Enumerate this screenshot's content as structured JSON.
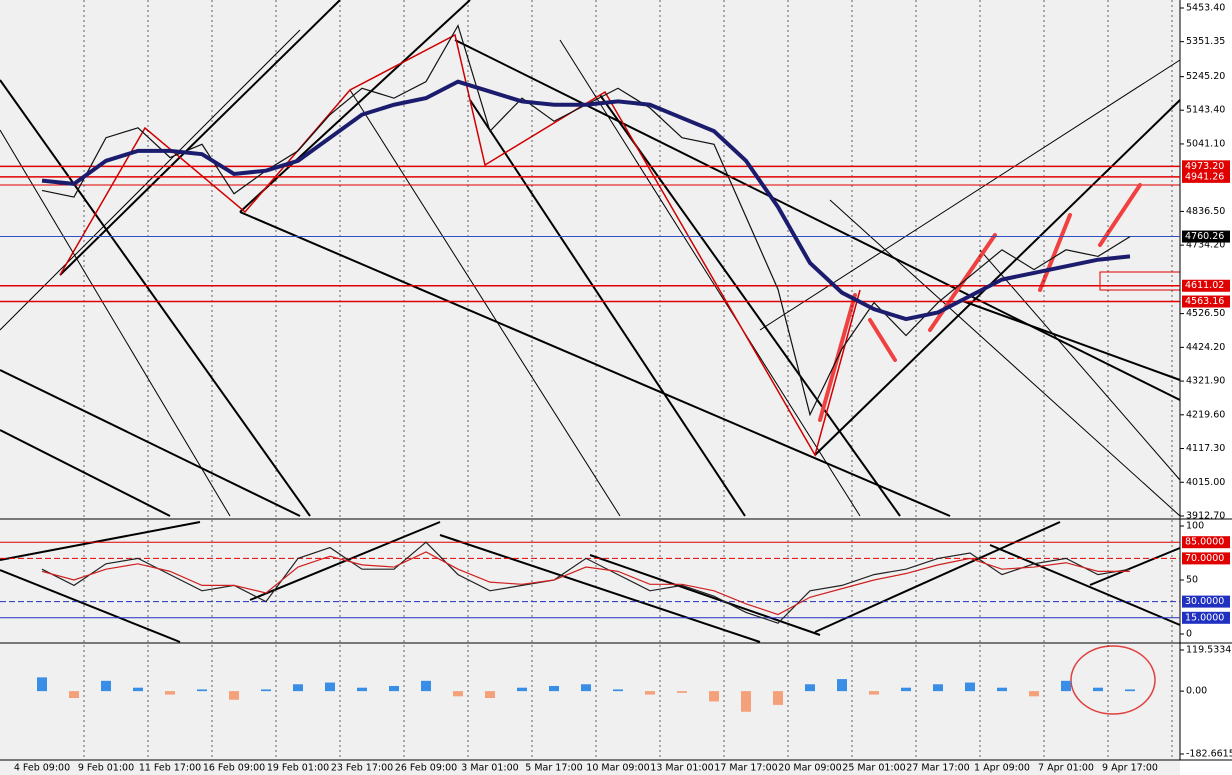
{
  "chart_data": [
    {
      "type": "line",
      "categories": [
        "4 Feb 09:00",
        null,
        "9 Feb 01:00",
        null,
        "11 Feb 17:00",
        null,
        "16 Feb 09:00",
        null,
        "19 Feb 01:00",
        null,
        "23 Feb 17:00",
        null,
        "26 Feb 09:00",
        null,
        "3 Mar 01:00",
        null,
        "5 Mar 17:00",
        null,
        "10 Mar 09:00",
        null,
        "13 Mar 01:00",
        null,
        "17 Mar 17:00",
        null,
        "20 Mar 09:00",
        null,
        "25 Mar 01:00",
        null,
        "27 Mar 17:00",
        null,
        "1 Apr 09:00",
        null,
        "7 Apr 01:00",
        null,
        "9 Apr 17:00"
      ],
      "series": [
        {
          "color": "#111111",
          "values": [
            4900,
            4880,
            5060,
            5090,
            5000,
            5040,
            4890,
            4960,
            5020,
            5130,
            5210,
            5180,
            5230,
            5400,
            5080,
            5180,
            5110,
            5160,
            5210,
            5150,
            5060,
            5040,
            4820,
            4600,
            4220,
            4420,
            4560,
            4460,
            4560,
            4640,
            4720,
            4660,
            4720,
            4700,
            4760
          ]
        },
        {
          "color": "#1c1c6e",
          "values": [
            4930,
            4920,
            4990,
            5020,
            5020,
            5010,
            4950,
            4960,
            4990,
            5060,
            5130,
            5160,
            5180,
            5230,
            5200,
            5170,
            5160,
            5160,
            5170,
            5160,
            5120,
            5080,
            4990,
            4850,
            4680,
            4590,
            4540,
            4510,
            4530,
            4580,
            4630,
            4650,
            4670,
            4690,
            4700
          ]
        }
      ],
      "ylim": [
        3912.7,
        5453.4
      ],
      "yticks": [
        {
          "value": 5453.4,
          "label": "5453.40"
        },
        5351.35,
        {
          "value": 5245.2,
          "label": "5245.20"
        },
        {
          "value": 5143.4,
          "label": "5143.40"
        },
        {
          "value": 5041.1,
          "label": "5041.10"
        },
        {
          "value": 4836.5,
          "label": "4836.50"
        },
        {
          "value": 4734.2,
          "label": "4734.20"
        },
        {
          "value": 4526.5,
          "label": "4526.50"
        },
        {
          "value": 4424.2,
          "label": "4424.20"
        },
        {
          "value": 4321.9,
          "label": "4321.90"
        },
        {
          "value": 4219.6,
          "label": "4219.60"
        },
        {
          "value": 4117.3,
          "label": "4117.30"
        },
        {
          "value": 4015.0,
          "label": "4015.00"
        },
        {
          "value": 3912.7,
          "label": "3912.70"
        }
      ],
      "levels": [
        {
          "value": {
            "value": 4973.2,
            "label": "4973.20"
          },
          "color": "#e00000"
        },
        {
          "value": 4941.26,
          "color": "#e00000"
        },
        {
          "value": 4760.26,
          "color": "#3050c0"
        },
        {
          "value": 4611.02,
          "color": "#e00000"
        },
        {
          "value": 4563.16,
          "color": "#e00000"
        }
      ]
    },
    {
      "type": "line",
      "series": [
        {
          "color": "#222222",
          "values": [
            60,
            45,
            65,
            70,
            55,
            40,
            45,
            30,
            70,
            80,
            60,
            60,
            85,
            55,
            40,
            45,
            50,
            70,
            55,
            40,
            45,
            35,
            20,
            10,
            40,
            45,
            55,
            60,
            70,
            75,
            55,
            65,
            70,
            55,
            60
          ]
        },
        {
          "color": "#d02020",
          "values": [
            58,
            50,
            60,
            65,
            58,
            45,
            45,
            38,
            62,
            72,
            64,
            62,
            76,
            60,
            48,
            46,
            50,
            62,
            58,
            46,
            46,
            40,
            28,
            18,
            34,
            42,
            50,
            56,
            64,
            70,
            60,
            62,
            66,
            58,
            58
          ]
        }
      ],
      "ylim": [
        0,
        100
      ],
      "yticks": [
        0,
        50,
        100
      ],
      "levels": [
        {
          "value": {
            "value": 85,
            "label": "85.0000"
          },
          "color": "#e00000"
        },
        {
          "value": {
            "value": 70,
            "label": "70.0000"
          },
          "color": "#e00000"
        },
        {
          "value": {
            "value": 30,
            "label": "30.0000"
          },
          "color": "#2030c0"
        },
        {
          "value": {
            "value": 15,
            "label": "15.0000"
          },
          "color": "#2030c0"
        }
      ]
    },
    {
      "type": "bar",
      "values": [
        40,
        -20,
        30,
        10,
        -10,
        5,
        -25,
        5,
        20,
        25,
        10,
        15,
        30,
        -15,
        -20,
        10,
        15,
        20,
        5,
        -10,
        -5,
        -30,
        -60,
        -40,
        20,
        35,
        -10,
        10,
        20,
        25,
        10,
        -15,
        30,
        10,
        5
      ],
      "colors": {
        "positive": "#3a8ee6",
        "negative": "#f4a07a"
      },
      "ylim": [
        -182.6615,
        119.5334
      ],
      "yticks": [
        {
          "value": 119.5334,
          "label": "119.5334"
        },
        {
          "value": 0,
          "label": "0.00"
        },
        {
          "value": -182.6615,
          "label": "-182.6615"
        }
      ]
    }
  ]
}
